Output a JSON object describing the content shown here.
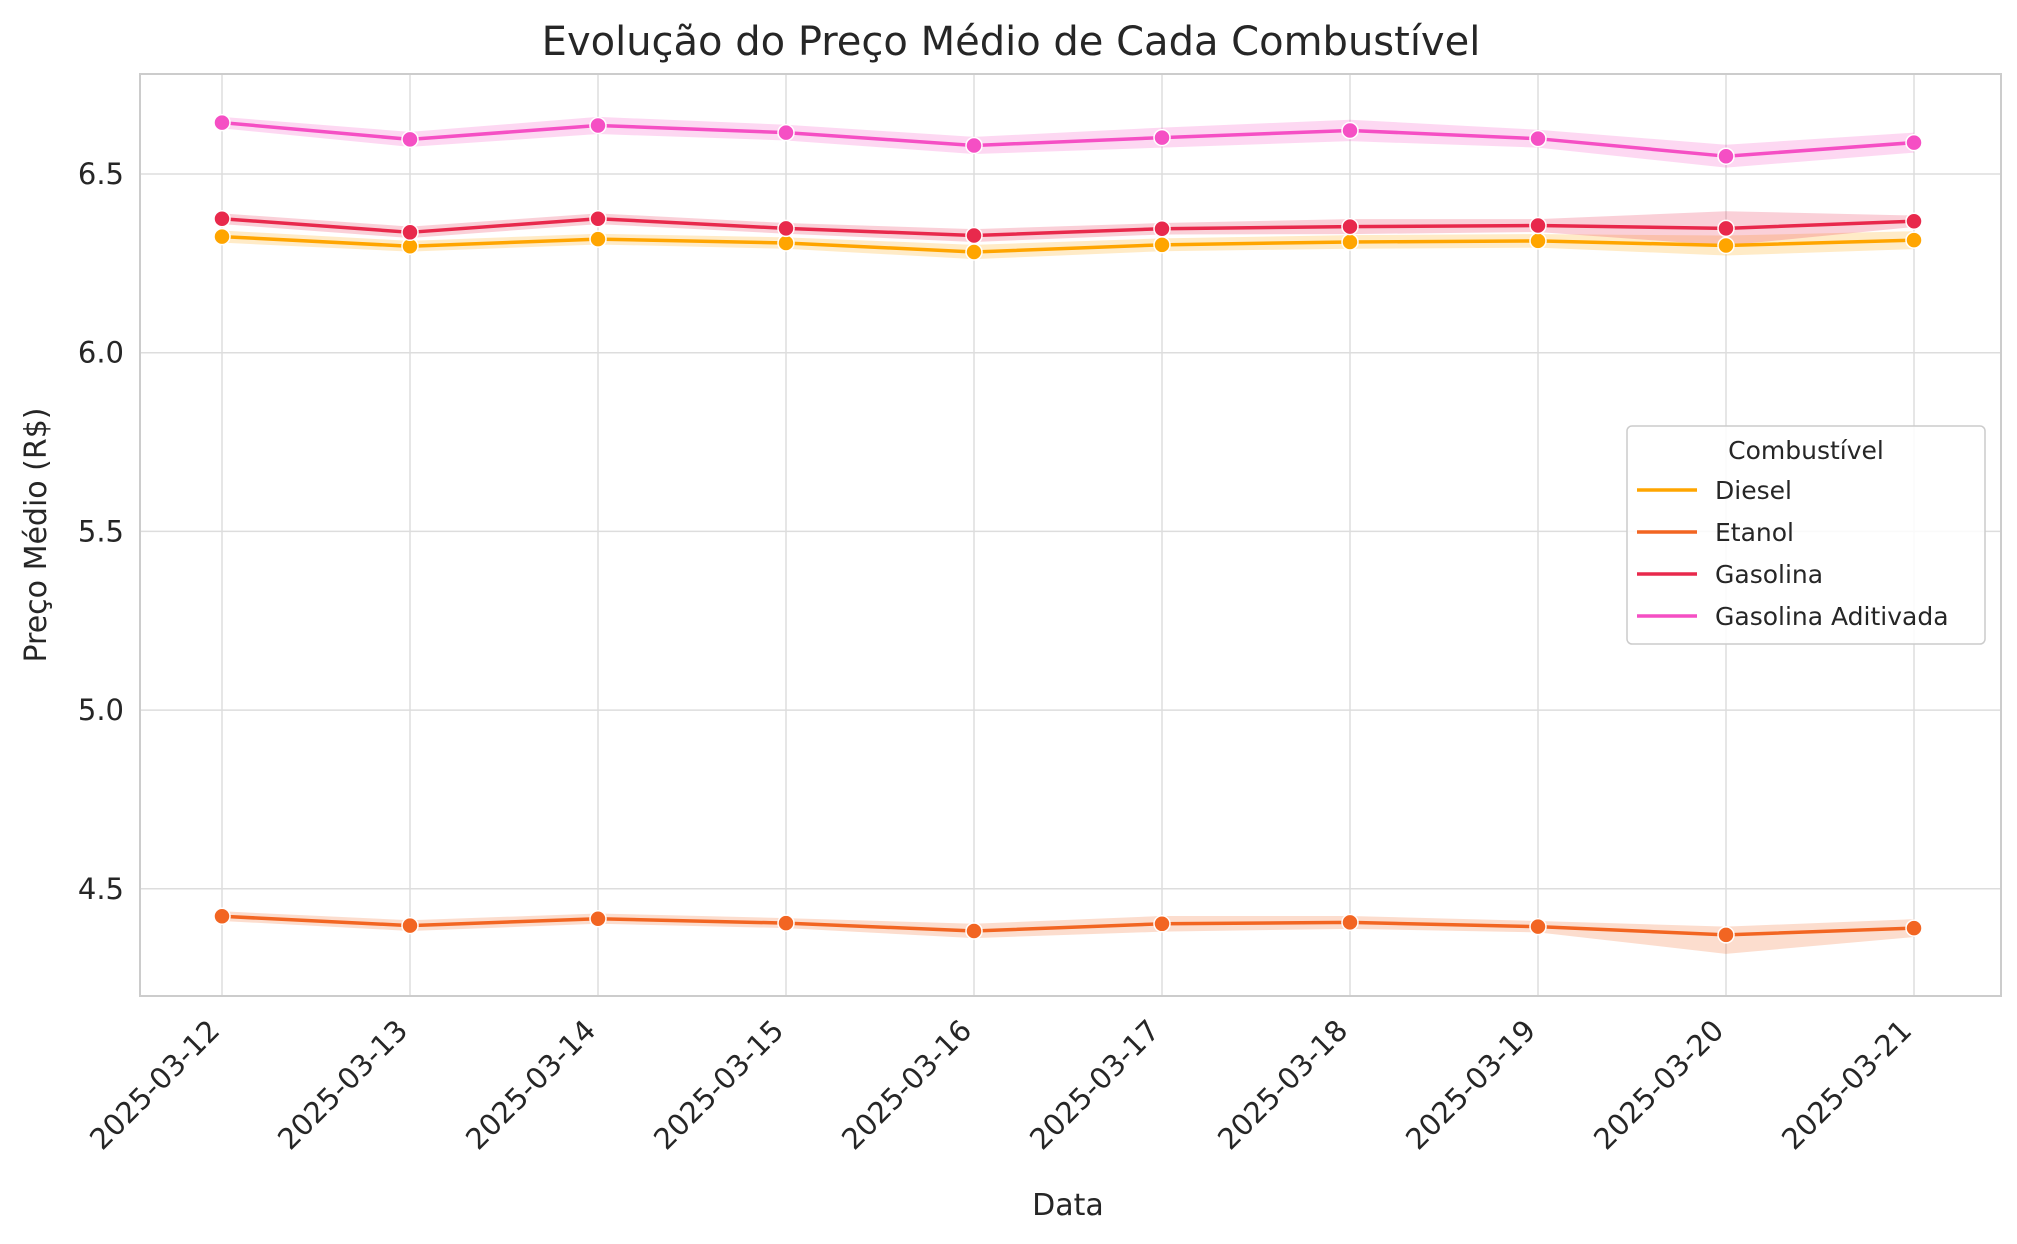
{
  "chart_data": {
    "type": "line",
    "title": "Evolução do Preço Médio de Cada Combustível",
    "xlabel": "Data",
    "ylabel": "Preço Médio (R$)",
    "categories": [
      "2025-03-12",
      "2025-03-13",
      "2025-03-14",
      "2025-03-15",
      "2025-03-16",
      "2025-03-17",
      "2025-03-18",
      "2025-03-19",
      "2025-03-20",
      "2025-03-21"
    ],
    "ylim": [
      4.2,
      6.78
    ],
    "yticks": [
      4.5,
      5.0,
      5.5,
      6.0,
      6.5
    ],
    "ytick_labels": [
      "4.5",
      "5.0",
      "5.5",
      "6.0",
      "6.5"
    ],
    "grid": true,
    "legend": {
      "title": "Combustível",
      "placement": "center-right"
    },
    "series": [
      {
        "name": "Diesel",
        "color": "#FFA500",
        "values": [
          6.325,
          6.298,
          6.318,
          6.307,
          6.282,
          6.302,
          6.31,
          6.313,
          6.3,
          6.315
        ],
        "ci_low": [
          6.308,
          6.283,
          6.303,
          6.291,
          6.262,
          6.284,
          6.291,
          6.294,
          6.272,
          6.29
        ],
        "ci_high": [
          6.342,
          6.313,
          6.333,
          6.323,
          6.302,
          6.32,
          6.329,
          6.332,
          6.328,
          6.34
        ]
      },
      {
        "name": "Etanol",
        "color": "#F26522",
        "values": [
          4.423,
          4.397,
          4.416,
          4.404,
          4.382,
          4.402,
          4.406,
          4.394,
          4.371,
          4.39
        ],
        "ci_low": [
          4.41,
          4.382,
          4.402,
          4.39,
          4.362,
          4.38,
          4.388,
          4.378,
          4.318,
          4.365
        ],
        "ci_high": [
          4.437,
          4.412,
          4.431,
          4.418,
          4.402,
          4.424,
          4.424,
          4.41,
          4.394,
          4.415
        ]
      },
      {
        "name": "Gasolina",
        "color": "#E8294C",
        "values": [
          6.375,
          6.337,
          6.375,
          6.348,
          6.328,
          6.347,
          6.353,
          6.356,
          6.348,
          6.368
        ],
        "ci_low": [
          6.36,
          6.321,
          6.36,
          6.333,
          6.31,
          6.331,
          6.332,
          6.338,
          6.3,
          6.352
        ],
        "ci_high": [
          6.39,
          6.353,
          6.39,
          6.363,
          6.346,
          6.363,
          6.374,
          6.374,
          6.396,
          6.384
        ]
      },
      {
        "name": "Gasolina Aditivada",
        "color": "#F54FC4",
        "values": [
          6.644,
          6.597,
          6.636,
          6.616,
          6.58,
          6.602,
          6.622,
          6.599,
          6.55,
          6.588
        ],
        "ci_low": [
          6.628,
          6.576,
          6.612,
          6.594,
          6.556,
          6.574,
          6.592,
          6.574,
          6.518,
          6.56
        ],
        "ci_high": [
          6.66,
          6.618,
          6.66,
          6.638,
          6.604,
          6.63,
          6.652,
          6.624,
          6.582,
          6.616
        ]
      }
    ]
  }
}
